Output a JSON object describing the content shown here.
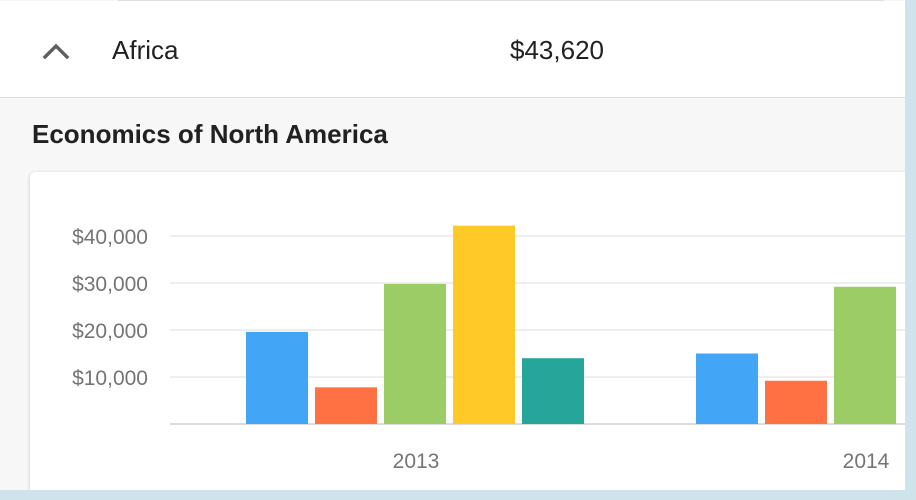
{
  "row": {
    "region": "Africa",
    "value": "$43,620",
    "toggle_icon": "chevron-up-icon"
  },
  "section": {
    "title": "Economics of North America"
  },
  "chart_data": {
    "type": "bar",
    "categories": [
      "2013",
      "2014"
    ],
    "series": [
      {
        "color": "#42a5f5",
        "values": [
          19600,
          15000
        ]
      },
      {
        "color": "#ff7043",
        "values": [
          7800,
          9200
        ]
      },
      {
        "color": "#9ccc65",
        "values": [
          29800,
          29200
        ]
      },
      {
        "color": "#ffca28",
        "values": [
          42200,
          null
        ]
      },
      {
        "color": "#26a69a",
        "values": [
          14000,
          null
        ]
      }
    ],
    "yticks": [
      "$10,000",
      "$20,000",
      "$30,000",
      "$40,000"
    ],
    "ytick_values": [
      10000,
      20000,
      30000,
      40000
    ],
    "ylim": [
      0,
      50000
    ],
    "grid": true,
    "title": "",
    "xlabel": "",
    "ylabel": ""
  }
}
